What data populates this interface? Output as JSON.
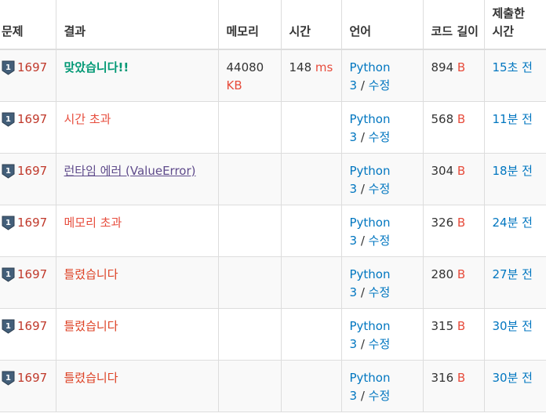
{
  "headers": {
    "problem": "문제",
    "result": "결과",
    "memory": "메모리",
    "time": "시간",
    "language": "언어",
    "code_length": "코드 길이",
    "submitted": "제출한 시간"
  },
  "unit_kb": "KB",
  "unit_ms": "ms",
  "unit_b": "B",
  "separator": "/",
  "rows": [
    {
      "problem": "1697",
      "result": "맞았습니다!!",
      "memory": "44080",
      "time": "148",
      "lang": "Python 3",
      "edit": "수정",
      "length": "894",
      "submitted": "15초 전"
    },
    {
      "problem": "1697",
      "result": "시간 초과",
      "memory": "",
      "time": "",
      "lang": "Python 3",
      "edit": "수정",
      "length": "568",
      "submitted": "11분 전"
    },
    {
      "problem": "1697",
      "result": "런타임 에러 (ValueError)",
      "memory": "",
      "time": "",
      "lang": "Python 3",
      "edit": "수정",
      "length": "304",
      "submitted": "18분 전"
    },
    {
      "problem": "1697",
      "result": "메모리 초과",
      "memory": "",
      "time": "",
      "lang": "Python 3",
      "edit": "수정",
      "length": "326",
      "submitted": "24분 전"
    },
    {
      "problem": "1697",
      "result": "틀렸습니다",
      "memory": "",
      "time": "",
      "lang": "Python 3",
      "edit": "수정",
      "length": "280",
      "submitted": "27분 전"
    },
    {
      "problem": "1697",
      "result": "틀렸습니다",
      "memory": "",
      "time": "",
      "lang": "Python 3",
      "edit": "수정",
      "length": "315",
      "submitted": "30분 전"
    },
    {
      "problem": "1697",
      "result": "틀렸습니다",
      "memory": "",
      "time": "",
      "lang": "Python 3",
      "edit": "수정",
      "length": "316",
      "submitted": "30분 전"
    }
  ],
  "colors": {
    "accepted": "#009874",
    "error": "#e74c3c",
    "runtime_error": "#5f4b8b",
    "wrong": "#dd4124",
    "link": "#0076c0",
    "problem_link": "#c0392b",
    "tier_icon": "#435f7a"
  },
  "icons": {
    "tier": "silver-tier-1-icon"
  }
}
